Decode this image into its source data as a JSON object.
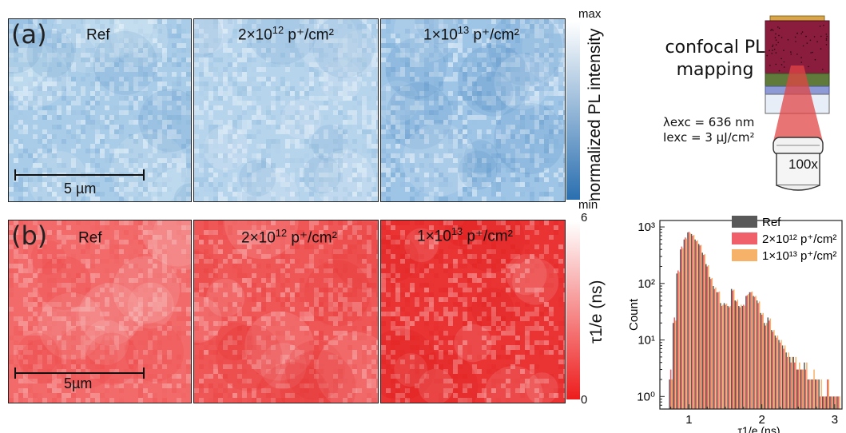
{
  "panels": {
    "a": {
      "label": "(a)",
      "titles": [
        {
          "base": "Ref",
          "exp": "",
          "tail": ""
        },
        {
          "base": "2×10",
          "exp": "12",
          "tail": " p⁺/cm²"
        },
        {
          "base": "1×10",
          "exp": "13",
          "tail": " p⁺/cm²"
        }
      ],
      "scale_bar": "5 µm",
      "colorbar": {
        "max": "max",
        "min": "min",
        "title": "normalized PL intensity",
        "colors": [
          "#ffffff",
          "#2a6fb0"
        ]
      }
    },
    "b": {
      "label": "(b)",
      "titles": [
        {
          "base": "Ref",
          "exp": "",
          "tail": ""
        },
        {
          "base": "2×10",
          "exp": "12",
          "tail": " p⁺/cm²"
        },
        {
          "base": "1×10",
          "exp": "13",
          "tail": " p⁺/cm²"
        }
      ],
      "scale_bar": "5µm",
      "colorbar": {
        "max": "6",
        "min": "0",
        "title": "τ1/e (ns)",
        "colors": [
          "#ffffff",
          "#ee1c1c"
        ]
      }
    }
  },
  "schematic": {
    "title_line1": "confocal PL",
    "title_line2": "mapping",
    "lambda": "λexc = 636 nm",
    "intensity": "Iexc = 3 µJ/cm²",
    "objective": "100x"
  },
  "chart_data": {
    "type": "bar",
    "xlabel": "τ1/e (ns)",
    "ylabel": "Count",
    "xlim": [
      0.6,
      3.1
    ],
    "ylim": [
      0.6,
      1300
    ],
    "yscale": "log",
    "xticks": [
      "1",
      "2",
      "3"
    ],
    "yticks": [
      "10⁰",
      "10¹",
      "10²",
      "10³"
    ],
    "legend_position": "top-right",
    "x": [
      0.75,
      0.8,
      0.85,
      0.9,
      0.95,
      1.0,
      1.05,
      1.1,
      1.15,
      1.2,
      1.25,
      1.3,
      1.35,
      1.4,
      1.45,
      1.5,
      1.55,
      1.6,
      1.65,
      1.7,
      1.75,
      1.8,
      1.85,
      1.9,
      1.95,
      2.0,
      2.05,
      2.1,
      2.15,
      2.2,
      2.25,
      2.3,
      2.35,
      2.4,
      2.45,
      2.5,
      2.55,
      2.6,
      2.65,
      2.7,
      2.75,
      2.8,
      2.85,
      2.9,
      2.95,
      3.0,
      3.05
    ],
    "series": [
      {
        "name": "Ref",
        "color": "#595959",
        "values": [
          2,
          20,
          150,
          400,
          600,
          800,
          750,
          600,
          500,
          350,
          220,
          130,
          90,
          70,
          45,
          45,
          40,
          80,
          50,
          40,
          40,
          60,
          70,
          60,
          50,
          30,
          20,
          25,
          15,
          12,
          10,
          8,
          6,
          5,
          5,
          3,
          3,
          4,
          2,
          2,
          2,
          2,
          1,
          1,
          1,
          1,
          1
        ]
      },
      {
        "name": "2×10¹² p⁺/cm²",
        "color": "#f0606a",
        "values": [
          3,
          25,
          170,
          450,
          650,
          820,
          700,
          560,
          470,
          320,
          200,
          120,
          80,
          70,
          40,
          42,
          38,
          75,
          48,
          38,
          42,
          62,
          70,
          58,
          45,
          28,
          18,
          22,
          14,
          11,
          9,
          7,
          5,
          4,
          4,
          3,
          3,
          3,
          2,
          2,
          2,
          1,
          1,
          2,
          1,
          1,
          1
        ]
      },
      {
        "name": "1×10¹³ p⁺/cm²",
        "color": "#f7b26a",
        "values": [
          2,
          22,
          160,
          420,
          620,
          780,
          720,
          580,
          480,
          330,
          210,
          125,
          85,
          72,
          42,
          44,
          40,
          78,
          52,
          42,
          40,
          65,
          72,
          60,
          48,
          30,
          20,
          24,
          15,
          12,
          10,
          8,
          6,
          5,
          5,
          4,
          3,
          4,
          2,
          3,
          2,
          2,
          1,
          2,
          1,
          1,
          1
        ]
      }
    ]
  }
}
